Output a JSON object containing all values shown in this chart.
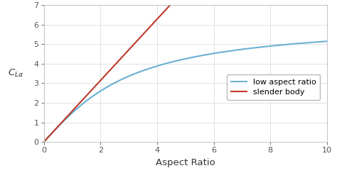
{
  "title": "",
  "xlabel": "Aspect Ratio",
  "ylabel": "C_{L\\alpha}",
  "xlim": [
    0,
    10
  ],
  "ylim": [
    0,
    7
  ],
  "xticks": [
    0,
    2,
    4,
    6,
    8,
    10
  ],
  "yticks": [
    0,
    1,
    2,
    3,
    4,
    5,
    6,
    7
  ],
  "low_aspect_color": "#6ab0d4",
  "slender_body_color": "#c0392b",
  "legend_labels": [
    "low aspect ratio",
    "slender body"
  ],
  "background_color": "#ffffff",
  "grid_color": "#dddddd",
  "figsize": [
    4.74,
    2.44
  ],
  "dpi": 100
}
